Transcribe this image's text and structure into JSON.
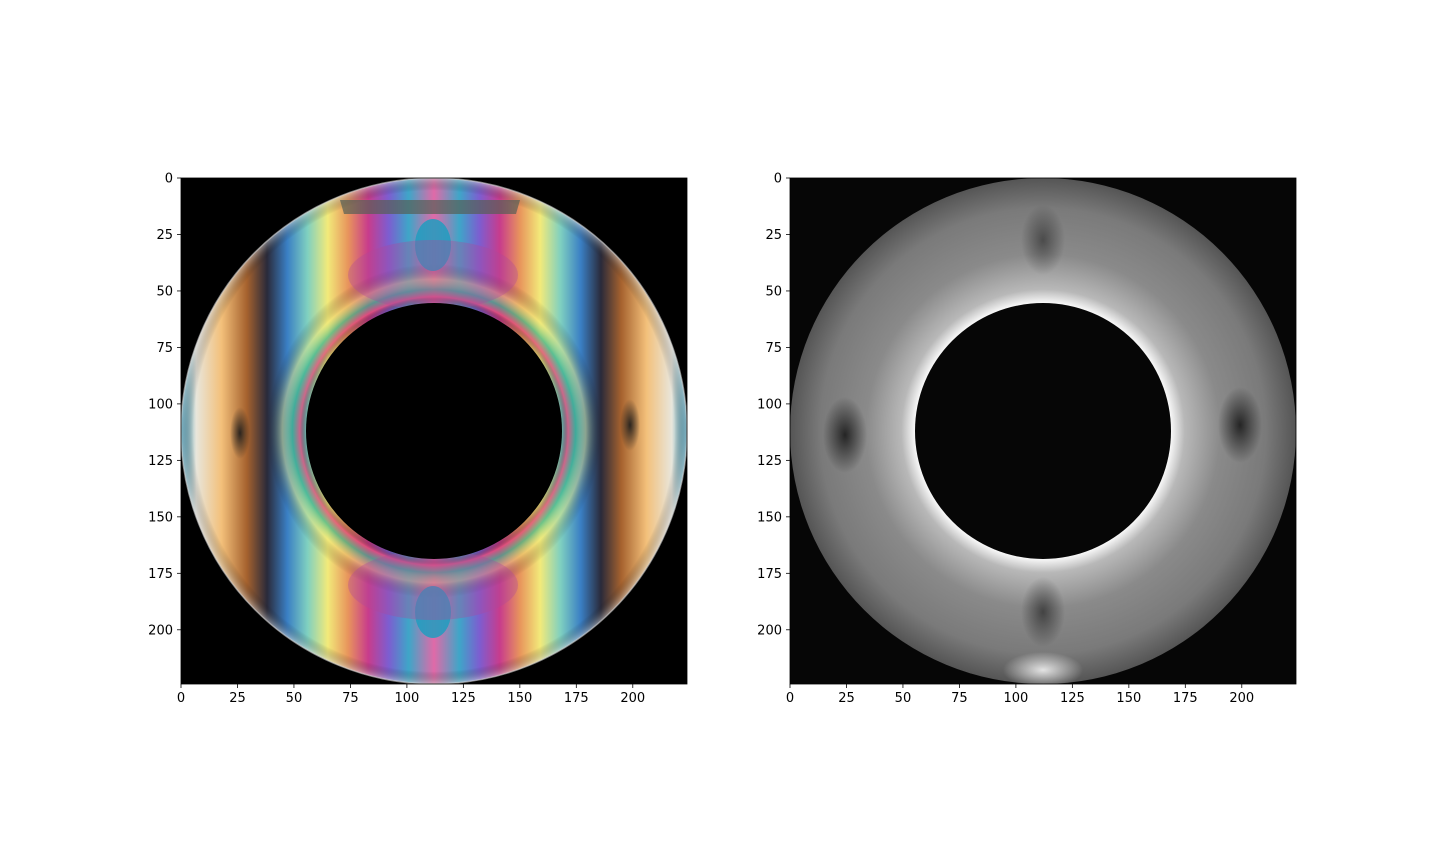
{
  "chart_data": [
    {
      "type": "heatmap",
      "image": "photoelastic-ring-color",
      "colormap": "isochromatic-fringes",
      "xlim": [
        0,
        224
      ],
      "ylim": [
        224,
        0
      ],
      "xticks": [
        0,
        25,
        50,
        75,
        100,
        125,
        150,
        175,
        200
      ],
      "yticks": [
        0,
        25,
        50,
        75,
        100,
        125,
        150,
        175,
        200
      ],
      "ring_center": [
        112,
        112
      ],
      "outer_radius": 112,
      "inner_radius": 57,
      "background_color": "#000000",
      "title": "",
      "xlabel": "",
      "ylabel": ""
    },
    {
      "type": "heatmap",
      "image": "stress-map-grayscale",
      "colormap": "gray",
      "xlim": [
        0,
        224
      ],
      "ylim": [
        224,
        0
      ],
      "xticks": [
        0,
        25,
        50,
        75,
        100,
        125,
        150,
        175,
        200
      ],
      "yticks": [
        0,
        25,
        50,
        75,
        100,
        125,
        150,
        175,
        200
      ],
      "ring_center": [
        112,
        112
      ],
      "outer_radius": 112,
      "inner_radius": 57,
      "background_color": "#060606",
      "title": "",
      "xlabel": "",
      "ylabel": ""
    }
  ]
}
